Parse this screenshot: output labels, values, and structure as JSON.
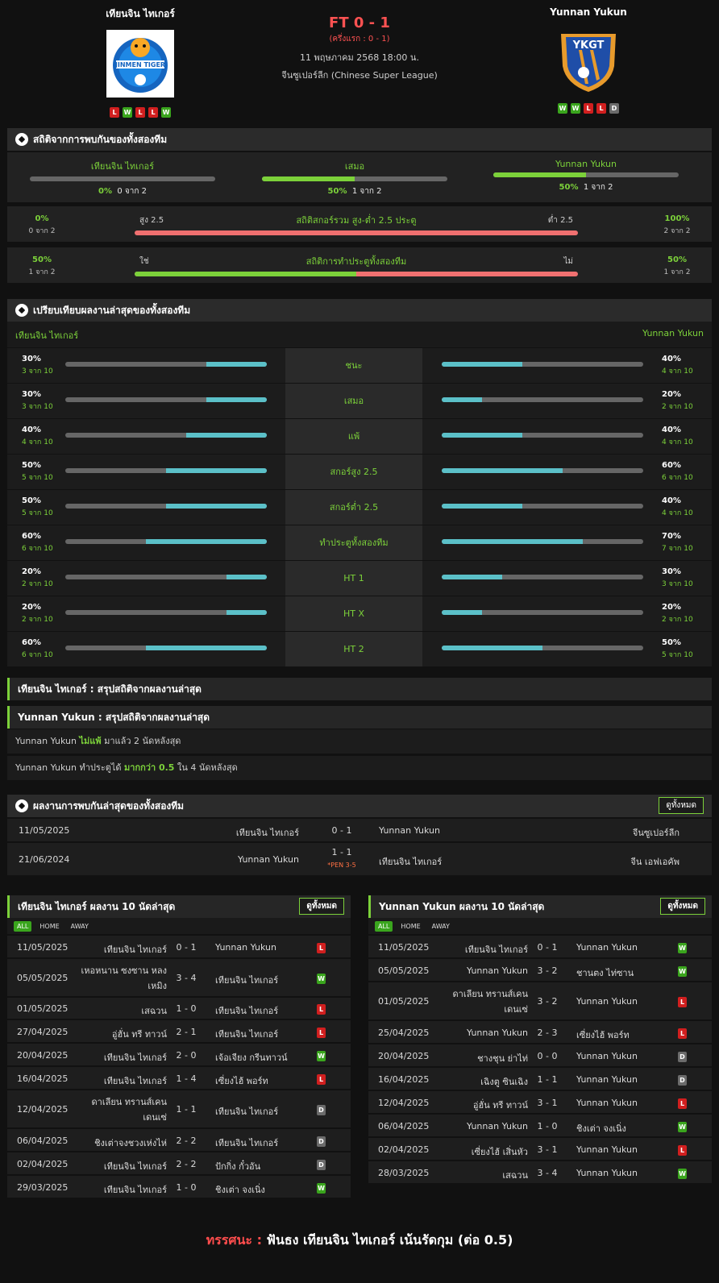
{
  "header": {
    "home_name": "เทียนจิน ไทเกอร์",
    "away_name": "Yunnan Yukun",
    "score": "FT 0 - 1",
    "halftime": "(ครึ่งแรก : 0 - 1)",
    "datetime": "11 พฤษภาคม 2568 18:00 น.",
    "league": "จีนซูเปอร์ลีก (Chinese Super League)",
    "home_form": [
      "L",
      "W",
      "L",
      "L",
      "W"
    ],
    "away_form": [
      "W",
      "W",
      "L",
      "L",
      "D"
    ],
    "away_logo_text": "YKGT"
  },
  "h2h": {
    "title": "สถิติจากการพบกันของทั้งสองทีม",
    "items": [
      {
        "label": "เทียนจิน ไทเกอร์",
        "pct": "0%",
        "of": "0 จาก 2",
        "value": 0
      },
      {
        "label": "เสมอ",
        "pct": "50%",
        "of": "1 จาก 2",
        "value": 50
      },
      {
        "label": "Yunnan Yukun",
        "pct": "50%",
        "of": "1 จาก 2",
        "value": 50
      }
    ],
    "ou": {
      "title": "สถิติสกอร์รวม สูง-ต่ำ 2.5 ประตู",
      "left_label": "สูง 2.5",
      "right_label": "ต่ำ 2.5",
      "left_pct": "0%",
      "left_of": "0 จาก 2",
      "right_pct": "100%",
      "right_of": "2 จาก 2",
      "left_value": 0
    },
    "btts": {
      "title": "สถิติการทำประตูทั้งสองทีม",
      "left_label": "ใช่",
      "right_label": "ไม่",
      "left_pct": "50%",
      "left_of": "1 จาก 2",
      "right_pct": "50%",
      "right_of": "1 จาก 2",
      "left_value": 50
    }
  },
  "compare": {
    "title": "เปรียบเทียบผลงานล่าสุดของทั้งสองทีม",
    "home": "เทียนจิน ไทเกอร์",
    "away": "Yunnan Yukun",
    "rows": [
      {
        "label": "ชนะ",
        "home_pct": "30%",
        "home_of": "3 จาก 10",
        "home_value": 30,
        "away_pct": "40%",
        "away_of": "4 จาก 10",
        "away_value": 40
      },
      {
        "label": "เสมอ",
        "home_pct": "30%",
        "home_of": "3 จาก 10",
        "home_value": 30,
        "away_pct": "20%",
        "away_of": "2 จาก 10",
        "away_value": 20
      },
      {
        "label": "แพ้",
        "home_pct": "40%",
        "home_of": "4 จาก 10",
        "home_value": 40,
        "away_pct": "40%",
        "away_of": "4 จาก 10",
        "away_value": 40
      },
      {
        "label": "สกอร์สูง 2.5",
        "home_pct": "50%",
        "home_of": "5 จาก 10",
        "home_value": 50,
        "away_pct": "60%",
        "away_of": "6 จาก 10",
        "away_value": 60
      },
      {
        "label": "สกอร์ต่ำ 2.5",
        "home_pct": "50%",
        "home_of": "5 จาก 10",
        "home_value": 50,
        "away_pct": "40%",
        "away_of": "4 จาก 10",
        "away_value": 40
      },
      {
        "label": "ทำประตูทั้งสองทีม",
        "home_pct": "60%",
        "home_of": "6 จาก 10",
        "home_value": 60,
        "away_pct": "70%",
        "away_of": "7 จาก 10",
        "away_value": 70
      },
      {
        "label": "HT 1",
        "home_pct": "20%",
        "home_of": "2 จาก 10",
        "home_value": 20,
        "away_pct": "30%",
        "away_of": "3 จาก 10",
        "away_value": 30
      },
      {
        "label": "HT X",
        "home_pct": "20%",
        "home_of": "2 จาก 10",
        "home_value": 20,
        "away_pct": "20%",
        "away_of": "2 จาก 10",
        "away_value": 20
      },
      {
        "label": "HT 2",
        "home_pct": "60%",
        "home_of": "6 จาก 10",
        "home_value": 60,
        "away_pct": "50%",
        "away_of": "5 จาก 10",
        "away_value": 50
      }
    ]
  },
  "summary": {
    "home_title": "เทียนจิน ไทเกอร์ : สรุปสถิติจากผลงานล่าสุด",
    "away_title": "Yunnan Yukun : สรุปสถิติจากผลงานล่าสุด",
    "line1": {
      "team": "Yunnan Yukun",
      "highlight": "ไม่แพ้",
      "rest": "มาแล้ว 2 นัดหลังสุด"
    },
    "line2": {
      "team": "Yunnan Yukun",
      "pre": "ทำประตูได้",
      "highlight": "มากกว่า 0.5",
      "rest": "ใน 4 นัดหลังสุด"
    }
  },
  "h2h_matches": {
    "title": "ผลงานการพบกันล่าสุดของทั้งสองทีม",
    "view_all": "ดูทั้งหมด",
    "rows": [
      {
        "date": "11/05/2025",
        "home": "เทียนจิน ไทเกอร์",
        "score": "0 - 1",
        "pen": "",
        "away": "Yunnan Yukun",
        "league": "จีนซูเปอร์ลีก"
      },
      {
        "date": "21/06/2024",
        "home": "Yunnan Yukun",
        "score": "1 - 1",
        "pen": "*PEN 3-5",
        "away": "เทียนจิน ไทเกอร์",
        "league": "จีน เอฟเอคัพ"
      }
    ]
  },
  "last10": {
    "tabs": [
      "ALL",
      "HOME",
      "AWAY"
    ],
    "view_all": "ดูทั้งหมด",
    "home": {
      "title": "เทียนจิน ไทเกอร์ ผลงาน 10 นัดล่าสุด",
      "rows": [
        {
          "date": "11/05/2025",
          "home": "เทียนจิน ไทเกอร์",
          "score": "0 - 1",
          "away": "Yunnan Yukun",
          "res": "L"
        },
        {
          "date": "05/05/2025",
          "home": "เหอหนาน ซงซาน หลงเหมิง",
          "score": "3 - 4",
          "away": "เทียนจิน ไทเกอร์",
          "res": "W"
        },
        {
          "date": "01/05/2025",
          "home": "เสฉวน",
          "score": "1 - 0",
          "away": "เทียนจิน ไทเกอร์",
          "res": "L"
        },
        {
          "date": "27/04/2025",
          "home": "อู่ฮั่น ทรี ทาวน์",
          "score": "2 - 1",
          "away": "เทียนจิน ไทเกอร์",
          "res": "L"
        },
        {
          "date": "20/04/2025",
          "home": "เทียนจิน ไทเกอร์",
          "score": "2 - 0",
          "away": "เจ้อเจียง กรีนทาวน์",
          "res": "W"
        },
        {
          "date": "16/04/2025",
          "home": "เทียนจิน ไทเกอร์",
          "score": "1 - 4",
          "away": "เซี่ยงไฮ้ พอร์ท",
          "res": "L"
        },
        {
          "date": "12/04/2025",
          "home": "ดาเลียน ทรานส์เคน เดนเซ่",
          "score": "1 - 1",
          "away": "เทียนจิน ไทเกอร์",
          "res": "D"
        },
        {
          "date": "06/04/2025",
          "home": "ชิงเต่าจงชวงเห่งไห่",
          "score": "2 - 2",
          "away": "เทียนจิน ไทเกอร์",
          "res": "D"
        },
        {
          "date": "02/04/2025",
          "home": "เทียนจิน ไทเกอร์",
          "score": "2 - 2",
          "away": "ปักกิ่ง กั๋วอัน",
          "res": "D"
        },
        {
          "date": "29/03/2025",
          "home": "เทียนจิน ไทเกอร์",
          "score": "1 - 0",
          "away": "ชิงเต่า จงเนิ่ง",
          "res": "W"
        }
      ]
    },
    "away": {
      "title": "Yunnan Yukun ผลงาน 10 นัดล่าสุด",
      "rows": [
        {
          "date": "11/05/2025",
          "home": "เทียนจิน ไทเกอร์",
          "score": "0 - 1",
          "away": "Yunnan Yukun",
          "res": "W"
        },
        {
          "date": "05/05/2025",
          "home": "Yunnan Yukun",
          "score": "3 - 2",
          "away": "ชานตง ไท่ซาน",
          "res": "W"
        },
        {
          "date": "01/05/2025",
          "home": "ดาเลียน ทรานส์เคน เดนเซ่",
          "score": "3 - 2",
          "away": "Yunnan Yukun",
          "res": "L"
        },
        {
          "date": "25/04/2025",
          "home": "Yunnan Yukun",
          "score": "2 - 3",
          "away": "เซี่ยงไฮ้ พอร์ท",
          "res": "L"
        },
        {
          "date": "20/04/2025",
          "home": "ชางชุน ย่าไท่",
          "score": "0 - 0",
          "away": "Yunnan Yukun",
          "res": "D"
        },
        {
          "date": "16/04/2025",
          "home": "เฉิงตู ซินเฉิง",
          "score": "1 - 1",
          "away": "Yunnan Yukun",
          "res": "D"
        },
        {
          "date": "12/04/2025",
          "home": "อู่ฮั่น ทรี ทาวน์",
          "score": "3 - 1",
          "away": "Yunnan Yukun",
          "res": "L"
        },
        {
          "date": "06/04/2025",
          "home": "Yunnan Yukun",
          "score": "1 - 0",
          "away": "ชิงเต่า จงเนิ่ง",
          "res": "W"
        },
        {
          "date": "02/04/2025",
          "home": "เซี่ยงไฮ้ เสิ่นหัว",
          "score": "3 - 1",
          "away": "Yunnan Yukun",
          "res": "L"
        },
        {
          "date": "28/03/2025",
          "home": "เสฉวน",
          "score": "3 - 4",
          "away": "Yunnan Yukun",
          "res": "W"
        }
      ]
    }
  },
  "verdict": {
    "label": "ทรรศนะ",
    "sep": ":",
    "text": "ฟันธง เทียนจิน ไทเกอร์ เน้นรัดกุม (ต่อ 0.5)"
  },
  "colors": {
    "accent": "#7cd13a",
    "score": "#ff5252",
    "teal": "#5bc0c8",
    "under": "#f07070"
  }
}
